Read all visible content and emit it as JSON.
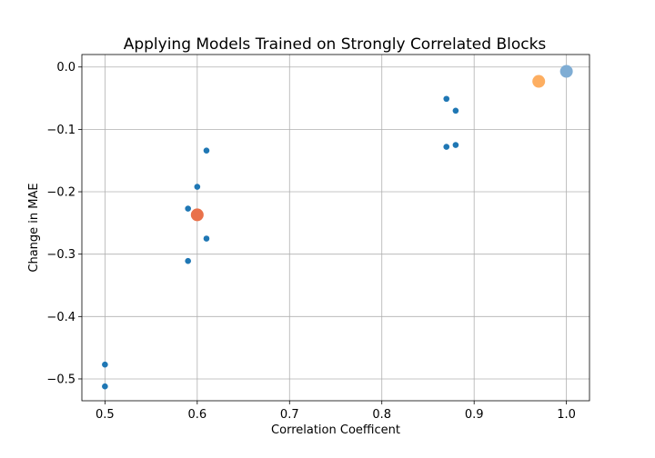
{
  "chart_data": {
    "type": "scatter",
    "title": "Applying Models Trained on Strongly Correlated Blocks",
    "xlabel": "Correlation Coefficent",
    "ylabel": "Change in MAE",
    "xlim": [
      0.475,
      1.025
    ],
    "ylim": [
      -0.535,
      0.02
    ],
    "x_ticks": [
      0.5,
      0.6,
      0.7,
      0.8,
      0.9,
      1.0
    ],
    "x_tick_labels": [
      "0.5",
      "0.6",
      "0.7",
      "0.8",
      "0.9",
      "1.0"
    ],
    "y_ticks": [
      0.0,
      -0.1,
      -0.2,
      -0.3,
      -0.4,
      -0.5
    ],
    "y_tick_labels": [
      "0.0",
      "−0.1",
      "−0.2",
      "−0.3",
      "−0.4",
      "−0.5"
    ],
    "grid": true,
    "series": [
      {
        "marker": "small",
        "color": "#1f77b4",
        "points": [
          {
            "x": 0.5,
            "y": -0.477
          },
          {
            "x": 0.5,
            "y": -0.512
          },
          {
            "x": 0.59,
            "y": -0.227
          },
          {
            "x": 0.59,
            "y": -0.311
          },
          {
            "x": 0.6,
            "y": -0.192
          },
          {
            "x": 0.61,
            "y": -0.134
          },
          {
            "x": 0.61,
            "y": -0.275
          },
          {
            "x": 0.87,
            "y": -0.051
          },
          {
            "x": 0.87,
            "y": -0.128
          },
          {
            "x": 0.88,
            "y": -0.07
          },
          {
            "x": 0.88,
            "y": -0.125
          }
        ]
      },
      {
        "marker": "large",
        "color": "#7fadd4",
        "points": [
          {
            "x": 1.0,
            "y": -0.007
          }
        ]
      },
      {
        "marker": "large",
        "color": "#fdae61",
        "points": [
          {
            "x": 0.97,
            "y": -0.023
          }
        ]
      },
      {
        "marker": "large",
        "color": "#e9714a",
        "points": [
          {
            "x": 0.6,
            "y": -0.237
          }
        ]
      }
    ]
  }
}
